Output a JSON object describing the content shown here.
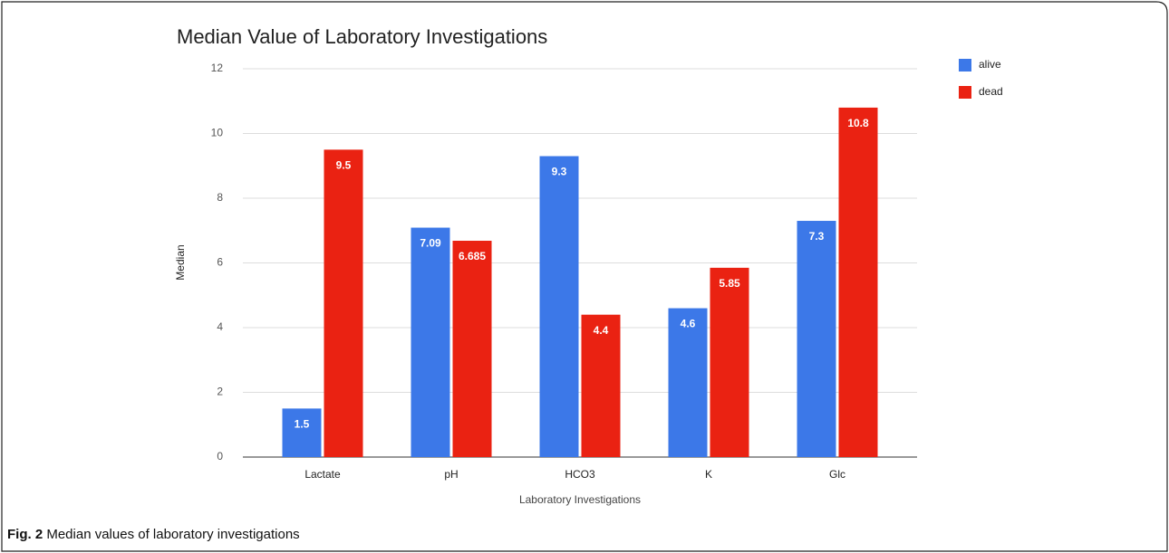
{
  "chart_data": {
    "type": "bar",
    "title": "Median Value of Laboratory Investigations",
    "x_label": "Laboratory Investigations",
    "y_label": "Median",
    "categories": [
      "Lactate",
      "pH",
      "HCO3",
      "K",
      "Glc"
    ],
    "series": [
      {
        "name": "alive",
        "color": "#3c78e8",
        "values": [
          1.5,
          7.09,
          9.3,
          4.6,
          7.3
        ]
      },
      {
        "name": "dead",
        "color": "#ea2212",
        "values": [
          9.5,
          6.685,
          4.4,
          5.85,
          10.8
        ]
      }
    ],
    "ylim": [
      0,
      12
    ],
    "yticks": [
      0,
      2,
      4,
      6,
      8,
      10,
      12
    ],
    "grid": true,
    "legend": "top-right"
  },
  "figure": {
    "label": "Fig. 2",
    "caption": "Median values of laboratory investigations"
  }
}
